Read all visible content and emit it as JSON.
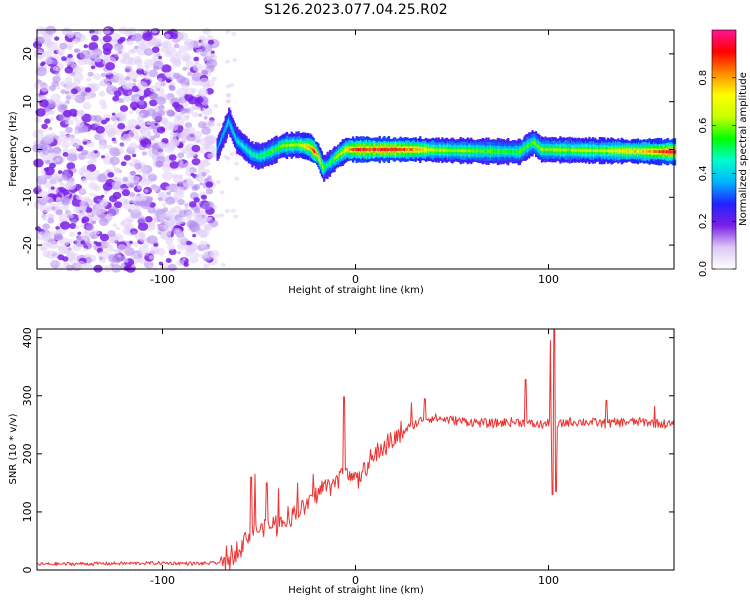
{
  "title": "S126.2023.077.04.25.R02",
  "chart_data": [
    {
      "type": "heatmap",
      "xlabel": "Height of straight line (km)",
      "ylabel": "Frequency (Hz)",
      "xlim": [
        -165,
        165
      ],
      "ylim": [
        -25,
        25
      ],
      "xticks": [
        -100,
        0,
        100
      ],
      "yticks": [
        -20,
        -10,
        0,
        10,
        20
      ],
      "colorbar": {
        "label": "Normalized spectral amplitude",
        "range": [
          0.0,
          1.0
        ],
        "ticks": [
          0.0,
          0.2,
          0.4,
          0.6,
          0.8
        ],
        "colors": [
          "#ffffff",
          "#dcc8f5",
          "#7a1fe8",
          "#2222ff",
          "#00b4ff",
          "#00ffcc",
          "#00ff00",
          "#c8ff00",
          "#ffff00",
          "#ff8c00",
          "#ff0000",
          "#ff1493"
        ]
      },
      "noise_region": {
        "x_range": [
          -165,
          -73
        ],
        "amplitude_range": [
          0.05,
          0.15
        ]
      },
      "ridge": [
        {
          "x": -72,
          "y": 0
        },
        {
          "x": -68,
          "y": 4
        },
        {
          "x": -66,
          "y": 6
        },
        {
          "x": -62,
          "y": 2
        },
        {
          "x": -58,
          "y": 0.5
        },
        {
          "x": -54,
          "y": -1
        },
        {
          "x": -50,
          "y": -1.5
        },
        {
          "x": -44,
          "y": -0.5
        },
        {
          "x": -38,
          "y": 0.8
        },
        {
          "x": -30,
          "y": 1
        },
        {
          "x": -24,
          "y": 0.5
        },
        {
          "x": -20,
          "y": -1
        },
        {
          "x": -17,
          "y": -4
        },
        {
          "x": -14,
          "y": -3
        },
        {
          "x": -10,
          "y": -1.5
        },
        {
          "x": -5,
          "y": 0
        },
        {
          "x": 10,
          "y": 0
        },
        {
          "x": 30,
          "y": 0
        },
        {
          "x": 60,
          "y": -0.3
        },
        {
          "x": 85,
          "y": -0.5
        },
        {
          "x": 88,
          "y": 0.5
        },
        {
          "x": 92,
          "y": 1.5
        },
        {
          "x": 96,
          "y": 0
        },
        {
          "x": 120,
          "y": -0.2
        },
        {
          "x": 165,
          "y": -0.5
        }
      ],
      "ridge_amplitude": [
        {
          "x": -72,
          "a": 0.25
        },
        {
          "x": -50,
          "a": 0.4
        },
        {
          "x": -30,
          "a": 0.6
        },
        {
          "x": -22,
          "a": 0.9
        },
        {
          "x": -15,
          "a": 0.4
        },
        {
          "x": -5,
          "a": 0.7
        },
        {
          "x": 0,
          "a": 0.9
        },
        {
          "x": 20,
          "a": 0.95
        },
        {
          "x": 40,
          "a": 0.6
        },
        {
          "x": 80,
          "a": 0.45
        },
        {
          "x": 100,
          "a": 0.55
        },
        {
          "x": 130,
          "a": 0.6
        },
        {
          "x": 150,
          "a": 0.75
        },
        {
          "x": 165,
          "a": 1.0
        }
      ]
    },
    {
      "type": "line",
      "xlabel": "Height of straight line (km)",
      "ylabel": "SNR (10 * v/v)",
      "xlim": [
        -165,
        165
      ],
      "ylim": [
        0,
        415
      ],
      "xticks": [
        -100,
        0,
        100
      ],
      "yticks": [
        0,
        100,
        200,
        300,
        400
      ],
      "color": "#ee3333",
      "series": [
        {
          "x": [
            -165,
            -130,
            -100,
            -80,
            -72,
            -68,
            -64,
            -62,
            -60,
            -56,
            -52,
            -48,
            -44,
            -40,
            -36,
            -30,
            -26,
            -20,
            -16,
            -12,
            -8,
            -5,
            -2,
            0,
            5,
            10,
            15,
            20,
            25,
            30,
            35,
            40,
            50,
            60,
            70,
            80,
            85,
            90,
            95,
            100,
            105,
            110,
            120,
            130,
            140,
            150,
            165
          ],
          "y": [
            10,
            11,
            12,
            11,
            12,
            15,
            25,
            32,
            40,
            60,
            70,
            70,
            75,
            80,
            88,
            100,
            110,
            130,
            145,
            150,
            160,
            170,
            170,
            150,
            175,
            195,
            215,
            225,
            240,
            250,
            260,
            262,
            258,
            255,
            252,
            255,
            255,
            252,
            250,
            252,
            250,
            255,
            255,
            252,
            255,
            255,
            250
          ]
        }
      ],
      "spikes": [
        {
          "x": -54,
          "y": 160
        },
        {
          "x": -52,
          "y": 165
        },
        {
          "x": -46,
          "y": 150
        },
        {
          "x": -40,
          "y": 140
        },
        {
          "x": -30,
          "y": 150
        },
        {
          "x": -22,
          "y": 165
        },
        {
          "x": -6,
          "y": 298
        },
        {
          "x": 29,
          "y": 288
        },
        {
          "x": 36,
          "y": 295
        },
        {
          "x": 88,
          "y": 328
        },
        {
          "x": 101,
          "y": 395
        },
        {
          "x": 102,
          "y": 130
        },
        {
          "x": 103,
          "y": 415
        },
        {
          "x": 104,
          "y": 135
        },
        {
          "x": 130,
          "y": 292
        },
        {
          "x": 155,
          "y": 282
        }
      ]
    }
  ]
}
